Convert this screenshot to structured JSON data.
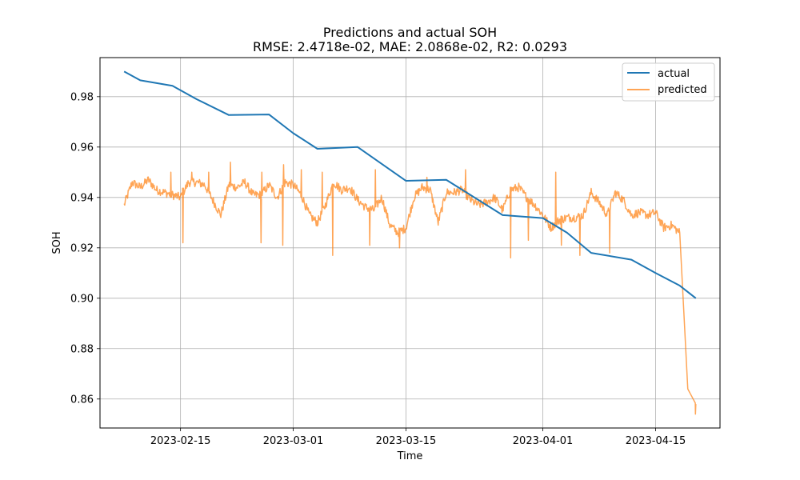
{
  "chart_data": {
    "type": "line",
    "title": "Predictions and actual SOH",
    "subtitle": "RMSE: 2.4718e-02, MAE: 2.0868e-02, R2: 0.0293",
    "xlabel": "Time",
    "ylabel": "SOH",
    "xlim": [
      "2023-02-05",
      "2023-04-23"
    ],
    "ylim": [
      0.8485,
      0.9955
    ],
    "x_ticks": [
      "2023-02-15",
      "2023-03-01",
      "2023-03-15",
      "2023-04-01",
      "2023-04-15"
    ],
    "y_ticks": [
      0.86,
      0.88,
      0.9,
      0.92,
      0.94,
      0.96,
      0.98
    ],
    "y_tick_labels": [
      "0.86",
      "0.88",
      "0.90",
      "0.92",
      "0.94",
      "0.96",
      "0.98"
    ],
    "grid": true,
    "legend_position": "top-right",
    "colors": {
      "actual": "#1f77b4",
      "predicted": "#ff7f0e"
    },
    "series": [
      {
        "name": "actual",
        "x": [
          "2023-02-08",
          "2023-02-10",
          "2023-02-14",
          "2023-02-17",
          "2023-02-21",
          "2023-02-26",
          "2023-03-01",
          "2023-03-04",
          "2023-03-09",
          "2023-03-15",
          "2023-03-20",
          "2023-03-27",
          "2023-04-01",
          "2023-04-04",
          "2023-04-07",
          "2023-04-12",
          "2023-04-15",
          "2023-04-18",
          "2023-04-20"
        ],
        "values": [
          0.99,
          0.9865,
          0.9843,
          0.979,
          0.9727,
          0.9729,
          0.9655,
          0.9593,
          0.96,
          0.9466,
          0.947,
          0.933,
          0.9318,
          0.926,
          0.918,
          0.9153,
          0.91,
          0.905,
          0.9
        ]
      },
      {
        "name": "predicted",
        "x": [
          "2023-02-08",
          "2023-02-09",
          "2023-02-10",
          "2023-02-11",
          "2023-02-12",
          "2023-02-13",
          "2023-02-14",
          "2023-02-15",
          "2023-02-16",
          "2023-02-17",
          "2023-02-18",
          "2023-02-19",
          "2023-02-20",
          "2023-02-21",
          "2023-02-22",
          "2023-02-23",
          "2023-02-24",
          "2023-02-25",
          "2023-02-26",
          "2023-02-27",
          "2023-02-28",
          "2023-03-01",
          "2023-03-02",
          "2023-03-03",
          "2023-03-04",
          "2023-03-05",
          "2023-03-06",
          "2023-03-07",
          "2023-03-08",
          "2023-03-09",
          "2023-03-10",
          "2023-03-11",
          "2023-03-12",
          "2023-03-13",
          "2023-03-14",
          "2023-03-15",
          "2023-03-16",
          "2023-03-17",
          "2023-03-18",
          "2023-03-19",
          "2023-03-20",
          "2023-03-21",
          "2023-03-22",
          "2023-03-23",
          "2023-03-24",
          "2023-03-25",
          "2023-03-26",
          "2023-03-27",
          "2023-03-28",
          "2023-03-29",
          "2023-03-30",
          "2023-03-31",
          "2023-04-01",
          "2023-04-02",
          "2023-04-03",
          "2023-04-04",
          "2023-04-05",
          "2023-04-06",
          "2023-04-07",
          "2023-04-08",
          "2023-04-09",
          "2023-04-10",
          "2023-04-11",
          "2023-04-12",
          "2023-04-13",
          "2023-04-14",
          "2023-04-15",
          "2023-04-16",
          "2023-04-17",
          "2023-04-18",
          "2023-04-19",
          "2023-04-20"
        ],
        "values": [
          0.937,
          0.946,
          0.944,
          0.947,
          0.943,
          0.942,
          0.941,
          0.94,
          0.946,
          0.946,
          0.945,
          0.939,
          0.933,
          0.945,
          0.944,
          0.946,
          0.941,
          0.941,
          0.945,
          0.94,
          0.946,
          0.945,
          0.941,
          0.933,
          0.93,
          0.937,
          0.946,
          0.943,
          0.944,
          0.939,
          0.936,
          0.935,
          0.94,
          0.929,
          0.926,
          0.928,
          0.94,
          0.944,
          0.943,
          0.93,
          0.942,
          0.942,
          0.943,
          0.939,
          0.937,
          0.938,
          0.94,
          0.935,
          0.943,
          0.944,
          0.94,
          0.937,
          0.933,
          0.928,
          0.931,
          0.932,
          0.932,
          0.933,
          0.942,
          0.938,
          0.933,
          0.942,
          0.939,
          0.933,
          0.934,
          0.933,
          0.934,
          0.928,
          0.929,
          0.926,
          0.864,
          0.858
        ]
      }
    ],
    "spikes_up": [
      0.95,
      0.95,
      0.95,
      0.954,
      0.95,
      0.953,
      0.951,
      0.95,
      0.951,
      0.948,
      0.951,
      0.95
    ],
    "spikes_down": [
      0.922,
      0.922,
      0.921,
      0.917,
      0.921,
      0.92,
      0.916,
      0.923,
      0.921,
      0.917,
      0.918,
      0.854
    ]
  }
}
